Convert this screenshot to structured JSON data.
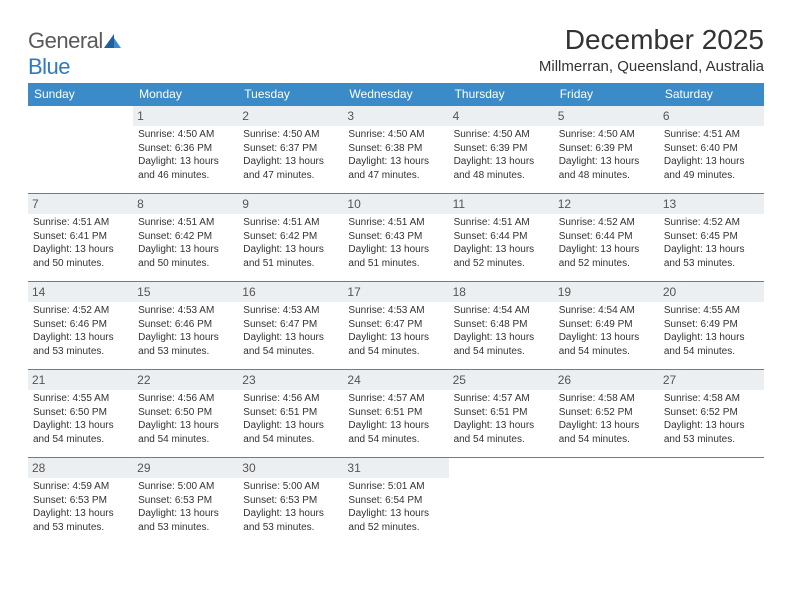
{
  "logo": {
    "part1": "General",
    "part2": "Blue"
  },
  "title": "December 2025",
  "location": "Millmerran, Queensland, Australia",
  "colors": {
    "header_bg": "#3b8bc8",
    "header_text": "#ffffff",
    "daynum_bg": "#eceff1",
    "row_border": "#3b8bc8",
    "logo_blue": "#2f7bbf",
    "logo_gray": "#5a5a5a",
    "text": "#333333",
    "background": "#ffffff"
  },
  "day_headers": [
    "Sunday",
    "Monday",
    "Tuesday",
    "Wednesday",
    "Thursday",
    "Friday",
    "Saturday"
  ],
  "weeks": [
    [
      {
        "day": "",
        "sunrise": "",
        "sunset": "",
        "daylight": ""
      },
      {
        "day": "1",
        "sunrise": "Sunrise: 4:50 AM",
        "sunset": "Sunset: 6:36 PM",
        "daylight": "Daylight: 13 hours and 46 minutes."
      },
      {
        "day": "2",
        "sunrise": "Sunrise: 4:50 AM",
        "sunset": "Sunset: 6:37 PM",
        "daylight": "Daylight: 13 hours and 47 minutes."
      },
      {
        "day": "3",
        "sunrise": "Sunrise: 4:50 AM",
        "sunset": "Sunset: 6:38 PM",
        "daylight": "Daylight: 13 hours and 47 minutes."
      },
      {
        "day": "4",
        "sunrise": "Sunrise: 4:50 AM",
        "sunset": "Sunset: 6:39 PM",
        "daylight": "Daylight: 13 hours and 48 minutes."
      },
      {
        "day": "5",
        "sunrise": "Sunrise: 4:50 AM",
        "sunset": "Sunset: 6:39 PM",
        "daylight": "Daylight: 13 hours and 48 minutes."
      },
      {
        "day": "6",
        "sunrise": "Sunrise: 4:51 AM",
        "sunset": "Sunset: 6:40 PM",
        "daylight": "Daylight: 13 hours and 49 minutes."
      }
    ],
    [
      {
        "day": "7",
        "sunrise": "Sunrise: 4:51 AM",
        "sunset": "Sunset: 6:41 PM",
        "daylight": "Daylight: 13 hours and 50 minutes."
      },
      {
        "day": "8",
        "sunrise": "Sunrise: 4:51 AM",
        "sunset": "Sunset: 6:42 PM",
        "daylight": "Daylight: 13 hours and 50 minutes."
      },
      {
        "day": "9",
        "sunrise": "Sunrise: 4:51 AM",
        "sunset": "Sunset: 6:42 PM",
        "daylight": "Daylight: 13 hours and 51 minutes."
      },
      {
        "day": "10",
        "sunrise": "Sunrise: 4:51 AM",
        "sunset": "Sunset: 6:43 PM",
        "daylight": "Daylight: 13 hours and 51 minutes."
      },
      {
        "day": "11",
        "sunrise": "Sunrise: 4:51 AM",
        "sunset": "Sunset: 6:44 PM",
        "daylight": "Daylight: 13 hours and 52 minutes."
      },
      {
        "day": "12",
        "sunrise": "Sunrise: 4:52 AM",
        "sunset": "Sunset: 6:44 PM",
        "daylight": "Daylight: 13 hours and 52 minutes."
      },
      {
        "day": "13",
        "sunrise": "Sunrise: 4:52 AM",
        "sunset": "Sunset: 6:45 PM",
        "daylight": "Daylight: 13 hours and 53 minutes."
      }
    ],
    [
      {
        "day": "14",
        "sunrise": "Sunrise: 4:52 AM",
        "sunset": "Sunset: 6:46 PM",
        "daylight": "Daylight: 13 hours and 53 minutes."
      },
      {
        "day": "15",
        "sunrise": "Sunrise: 4:53 AM",
        "sunset": "Sunset: 6:46 PM",
        "daylight": "Daylight: 13 hours and 53 minutes."
      },
      {
        "day": "16",
        "sunrise": "Sunrise: 4:53 AM",
        "sunset": "Sunset: 6:47 PM",
        "daylight": "Daylight: 13 hours and 54 minutes."
      },
      {
        "day": "17",
        "sunrise": "Sunrise: 4:53 AM",
        "sunset": "Sunset: 6:47 PM",
        "daylight": "Daylight: 13 hours and 54 minutes."
      },
      {
        "day": "18",
        "sunrise": "Sunrise: 4:54 AM",
        "sunset": "Sunset: 6:48 PM",
        "daylight": "Daylight: 13 hours and 54 minutes."
      },
      {
        "day": "19",
        "sunrise": "Sunrise: 4:54 AM",
        "sunset": "Sunset: 6:49 PM",
        "daylight": "Daylight: 13 hours and 54 minutes."
      },
      {
        "day": "20",
        "sunrise": "Sunrise: 4:55 AM",
        "sunset": "Sunset: 6:49 PM",
        "daylight": "Daylight: 13 hours and 54 minutes."
      }
    ],
    [
      {
        "day": "21",
        "sunrise": "Sunrise: 4:55 AM",
        "sunset": "Sunset: 6:50 PM",
        "daylight": "Daylight: 13 hours and 54 minutes."
      },
      {
        "day": "22",
        "sunrise": "Sunrise: 4:56 AM",
        "sunset": "Sunset: 6:50 PM",
        "daylight": "Daylight: 13 hours and 54 minutes."
      },
      {
        "day": "23",
        "sunrise": "Sunrise: 4:56 AM",
        "sunset": "Sunset: 6:51 PM",
        "daylight": "Daylight: 13 hours and 54 minutes."
      },
      {
        "day": "24",
        "sunrise": "Sunrise: 4:57 AM",
        "sunset": "Sunset: 6:51 PM",
        "daylight": "Daylight: 13 hours and 54 minutes."
      },
      {
        "day": "25",
        "sunrise": "Sunrise: 4:57 AM",
        "sunset": "Sunset: 6:51 PM",
        "daylight": "Daylight: 13 hours and 54 minutes."
      },
      {
        "day": "26",
        "sunrise": "Sunrise: 4:58 AM",
        "sunset": "Sunset: 6:52 PM",
        "daylight": "Daylight: 13 hours and 54 minutes."
      },
      {
        "day": "27",
        "sunrise": "Sunrise: 4:58 AM",
        "sunset": "Sunset: 6:52 PM",
        "daylight": "Daylight: 13 hours and 53 minutes."
      }
    ],
    [
      {
        "day": "28",
        "sunrise": "Sunrise: 4:59 AM",
        "sunset": "Sunset: 6:53 PM",
        "daylight": "Daylight: 13 hours and 53 minutes."
      },
      {
        "day": "29",
        "sunrise": "Sunrise: 5:00 AM",
        "sunset": "Sunset: 6:53 PM",
        "daylight": "Daylight: 13 hours and 53 minutes."
      },
      {
        "day": "30",
        "sunrise": "Sunrise: 5:00 AM",
        "sunset": "Sunset: 6:53 PM",
        "daylight": "Daylight: 13 hours and 53 minutes."
      },
      {
        "day": "31",
        "sunrise": "Sunrise: 5:01 AM",
        "sunset": "Sunset: 6:54 PM",
        "daylight": "Daylight: 13 hours and 52 minutes."
      },
      {
        "day": "",
        "sunrise": "",
        "sunset": "",
        "daylight": ""
      },
      {
        "day": "",
        "sunrise": "",
        "sunset": "",
        "daylight": ""
      },
      {
        "day": "",
        "sunrise": "",
        "sunset": "",
        "daylight": ""
      }
    ]
  ]
}
